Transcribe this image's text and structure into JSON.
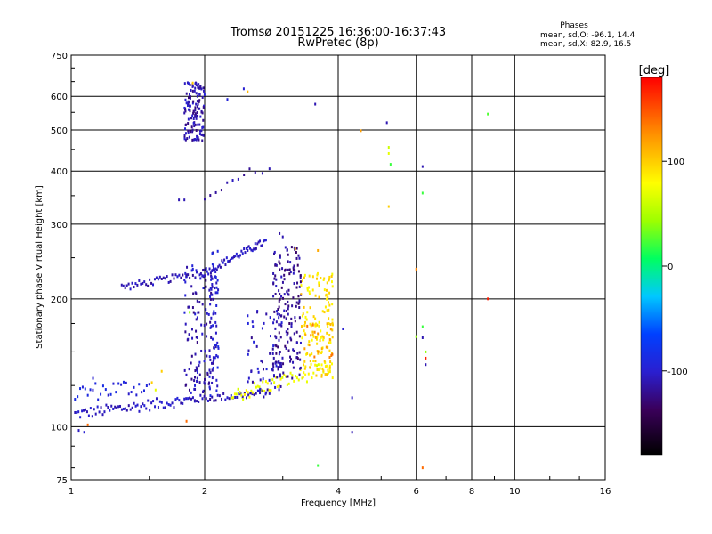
{
  "chart_data": {
    "type": "scatter",
    "title": "Tromsø 20151225 16:36:00-16:37:43",
    "subtitle": "RwPretec (8p)",
    "xlabel": "Frequency [MHz]",
    "ylabel": "Stationary phase Virtual Height [km]",
    "x_scale": "log",
    "y_scale": "log",
    "xlim": [
      1,
      16
    ],
    "ylim": [
      75,
      750
    ],
    "x_ticks": [
      "1",
      "2",
      "4",
      "6",
      "8",
      "10",
      "16"
    ],
    "x_tick_values": [
      1,
      2,
      4,
      6,
      8,
      10,
      16
    ],
    "y_ticks": [
      "750",
      "600",
      "500",
      "400",
      "300",
      "200",
      "100",
      "75"
    ],
    "y_tick_values": [
      750,
      600,
      500,
      400,
      300,
      200,
      100,
      75
    ],
    "grid": true,
    "info": {
      "heading": "Phases",
      "line1": "mean, sd,O: -96.1, 14.4",
      "line2": "mean, sd,X:  82.9, 16.5"
    },
    "colorbar": {
      "label": "[deg]",
      "range": [
        -180,
        180
      ],
      "ticks": [
        "100",
        "0",
        "-100"
      ],
      "tick_values": [
        100,
        0,
        -100
      ]
    },
    "traces": [
      {
        "x0": 1.02,
        "x1": 1.9,
        "y0": 107,
        "y1": 116,
        "phase": -105,
        "n": 70,
        "jitter": 0.03
      },
      {
        "x0": 1.9,
        "x1": 2.8,
        "y0": 116,
        "y1": 120,
        "phase": -110,
        "n": 40,
        "jitter": 0.02
      },
      {
        "x0": 1.02,
        "x1": 1.5,
        "y0": 120,
        "y1": 125,
        "phase": -95,
        "n": 30,
        "jitter": 0.05
      },
      {
        "x0": 1.3,
        "x1": 1.85,
        "y0": 213,
        "y1": 227,
        "phase": -110,
        "n": 40,
        "jitter": 0.02
      },
      {
        "x0": 1.95,
        "x1": 2.75,
        "y0": 227,
        "y1": 273,
        "phase": -105,
        "n": 55,
        "jitter": 0.02
      },
      {
        "x0": 2.0,
        "x1": 2.6,
        "y0": 340,
        "y1": 405,
        "phase": -112,
        "n": 10,
        "jitter": 0.02
      },
      {
        "x0": 2.3,
        "x1": 3.8,
        "y0": 118,
        "y1": 137,
        "phase": 75,
        "n": 60,
        "jitter": 0.04
      }
    ],
    "clusters": [
      {
        "x0": 1.8,
        "x1": 2.0,
        "y0": 470,
        "y1": 650,
        "phase": -112,
        "n": 130
      },
      {
        "x0": 1.8,
        "x1": 2.1,
        "y0": 120,
        "y1": 240,
        "phase": -110,
        "n": 120
      },
      {
        "x0": 2.05,
        "x1": 2.15,
        "y0": 118,
        "y1": 260,
        "phase": -100,
        "n": 60
      },
      {
        "x0": 2.5,
        "x1": 3.0,
        "y0": 120,
        "y1": 190,
        "phase": -108,
        "n": 60
      },
      {
        "x0": 2.85,
        "x1": 3.3,
        "y0": 130,
        "y1": 265,
        "phase": -118,
        "n": 170
      },
      {
        "x0": 3.3,
        "x1": 3.9,
        "y0": 130,
        "y1": 230,
        "phase": 90,
        "n": 140
      },
      {
        "x0": 3.35,
        "x1": 3.9,
        "y0": 145,
        "y1": 175,
        "phase": 125,
        "n": 20
      }
    ],
    "points": [
      {
        "x": 1.88,
        "y": 645,
        "phase": 100
      },
      {
        "x": 2.45,
        "y": 625,
        "phase": -100
      },
      {
        "x": 2.5,
        "y": 615,
        "phase": 110
      },
      {
        "x": 2.25,
        "y": 590,
        "phase": -95
      },
      {
        "x": 3.55,
        "y": 575,
        "phase": -110
      },
      {
        "x": 5.15,
        "y": 520,
        "phase": -110
      },
      {
        "x": 4.5,
        "y": 498,
        "phase": 120
      },
      {
        "x": 5.2,
        "y": 455,
        "phase": 60
      },
      {
        "x": 5.2,
        "y": 440,
        "phase": 70
      },
      {
        "x": 5.25,
        "y": 415,
        "phase": 20
      },
      {
        "x": 5.2,
        "y": 330,
        "phase": 100
      },
      {
        "x": 6.2,
        "y": 410,
        "phase": -110
      },
      {
        "x": 6.2,
        "y": 355,
        "phase": 20
      },
      {
        "x": 8.7,
        "y": 545,
        "phase": 25
      },
      {
        "x": 8.7,
        "y": 200,
        "phase": 170
      },
      {
        "x": 6.0,
        "y": 235,
        "phase": 130
      },
      {
        "x": 6.2,
        "y": 172,
        "phase": 20
      },
      {
        "x": 6.2,
        "y": 162,
        "phase": -110
      },
      {
        "x": 6.3,
        "y": 150,
        "phase": 40
      },
      {
        "x": 6.3,
        "y": 145,
        "phase": 170
      },
      {
        "x": 6.3,
        "y": 140,
        "phase": -110
      },
      {
        "x": 6.0,
        "y": 163,
        "phase": 40
      },
      {
        "x": 4.1,
        "y": 170,
        "phase": -100
      },
      {
        "x": 4.3,
        "y": 117,
        "phase": -105
      },
      {
        "x": 4.3,
        "y": 97,
        "phase": -110
      },
      {
        "x": 3.6,
        "y": 81,
        "phase": 20
      },
      {
        "x": 6.2,
        "y": 80,
        "phase": 140
      },
      {
        "x": 1.07,
        "y": 97,
        "phase": -100
      },
      {
        "x": 1.04,
        "y": 98,
        "phase": -105
      },
      {
        "x": 1.09,
        "y": 101,
        "phase": 140
      },
      {
        "x": 1.82,
        "y": 103,
        "phase": 140
      },
      {
        "x": 1.85,
        "y": 186,
        "phase": 40
      },
      {
        "x": 1.12,
        "y": 130,
        "phase": -100
      },
      {
        "x": 1.6,
        "y": 135,
        "phase": 100
      },
      {
        "x": 1.52,
        "y": 127,
        "phase": 100
      },
      {
        "x": 1.55,
        "y": 122,
        "phase": 70
      },
      {
        "x": 3.2,
        "y": 262,
        "phase": 110
      },
      {
        "x": 3.0,
        "y": 280,
        "phase": -110
      },
      {
        "x": 3.3,
        "y": 205,
        "phase": 110
      },
      {
        "x": 3.6,
        "y": 260,
        "phase": 115
      },
      {
        "x": 2.8,
        "y": 405,
        "phase": -110
      },
      {
        "x": 2.7,
        "y": 395,
        "phase": -110
      },
      {
        "x": 1.75,
        "y": 342,
        "phase": -110
      },
      {
        "x": 1.8,
        "y": 342,
        "phase": -110
      },
      {
        "x": 2.6,
        "y": 270,
        "phase": -100
      },
      {
        "x": 2.95,
        "y": 285,
        "phase": -115
      },
      {
        "x": 2.5,
        "y": 260,
        "phase": -105
      }
    ]
  }
}
